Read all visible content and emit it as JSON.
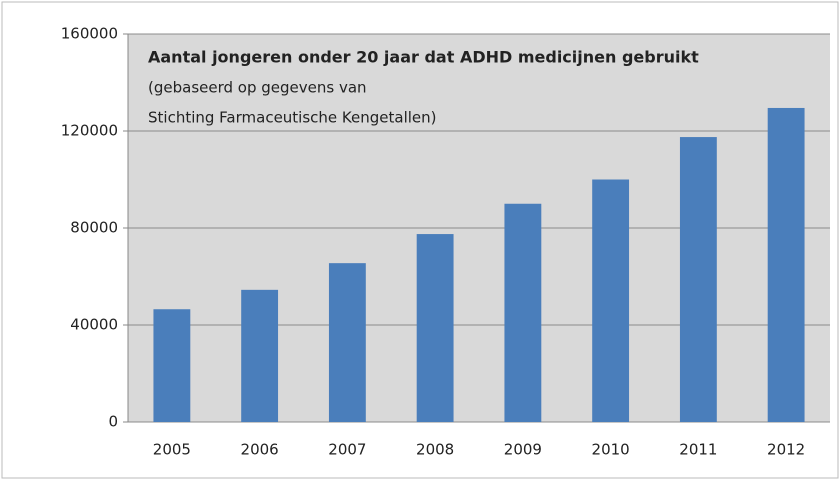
{
  "chart_data": {
    "type": "bar",
    "title": "Aantal jongeren onder 20 jaar dat ADHD medicijnen gebruikt",
    "subtitle": [
      "(gebaseerd op gegevens van",
      "Stichting Farmaceutische  Kengetallen)"
    ],
    "categories": [
      "2005",
      "2006",
      "2007",
      "2008",
      "2009",
      "2010",
      "2011",
      "2012"
    ],
    "values": [
      46500,
      54500,
      65500,
      77500,
      90000,
      100000,
      117500,
      129500
    ],
    "color": "#4a7ebb",
    "ylim": [
      0,
      160000
    ],
    "yticks": [
      0,
      40000,
      80000,
      120000,
      160000
    ],
    "grid": true
  }
}
